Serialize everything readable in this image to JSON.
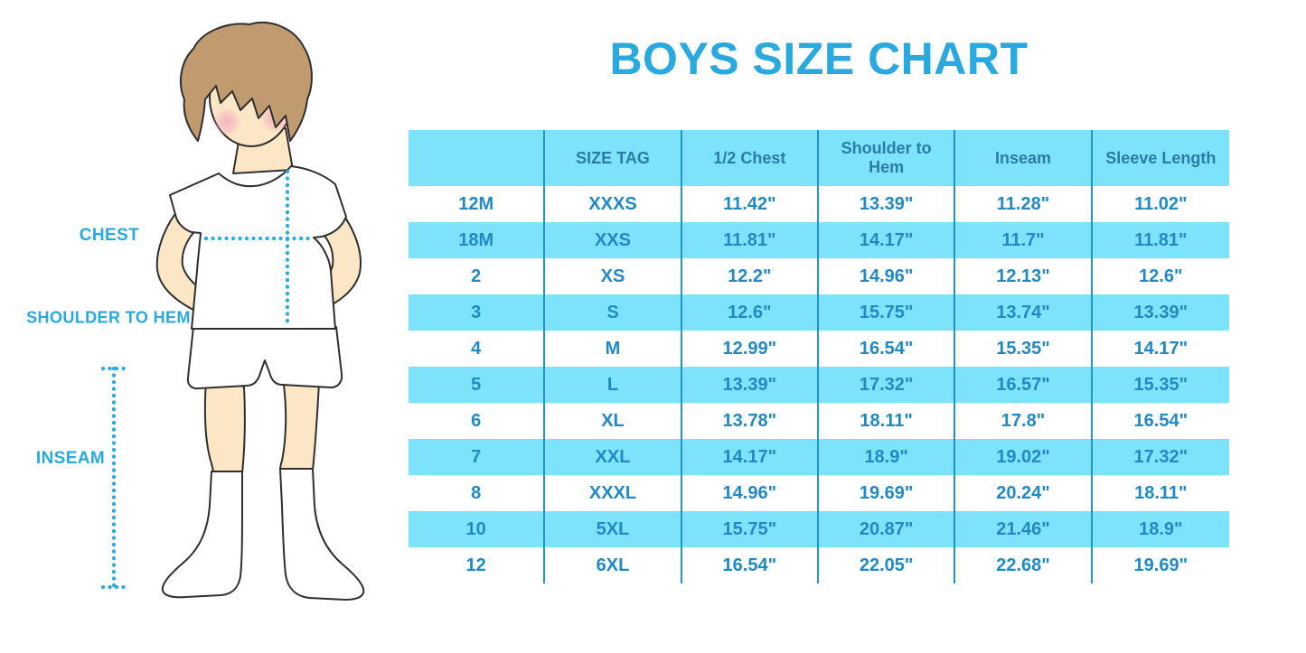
{
  "title": "BOYS SIZE CHART",
  "figure": {
    "labels": {
      "chest": "CHEST",
      "shoulder_to_hem": "SHOULDER TO HEM",
      "inseam": "INSEAM"
    }
  },
  "colors": {
    "accent_blue": "#29A9E0",
    "row_blue": "#7DE3FA",
    "divider_blue": "#2196C4",
    "header_text": "#287CA6",
    "cell_text": "#2189C4",
    "dotted_line": "#29ABE2",
    "skin": "#FBE7C6",
    "hair": "#C19B70",
    "cheek": "#F2A9BE",
    "outline": "#2F2F2F"
  },
  "chart_data": {
    "type": "table",
    "title": "BOYS SIZE CHART",
    "columns": [
      "",
      "SIZE TAG",
      "1/2 Chest",
      "Shoulder to Hem",
      "Inseam",
      "Sleeve Length"
    ],
    "rows": [
      [
        "12M",
        "XXXS",
        "11.42\"",
        "13.39\"",
        "11.28\"",
        "11.02\""
      ],
      [
        "18M",
        "XXS",
        "11.81\"",
        "14.17\"",
        "11.7\"",
        "11.81\""
      ],
      [
        "2",
        "XS",
        "12.2\"",
        "14.96\"",
        "12.13\"",
        "12.6\""
      ],
      [
        "3",
        "S",
        "12.6\"",
        "15.75\"",
        "13.74\"",
        "13.39\""
      ],
      [
        "4",
        "M",
        "12.99\"",
        "16.54\"",
        "15.35\"",
        "14.17\""
      ],
      [
        "5",
        "L",
        "13.39\"",
        "17.32\"",
        "16.57\"",
        "15.35\""
      ],
      [
        "6",
        "XL",
        "13.78\"",
        "18.11\"",
        "17.8\"",
        "16.54\""
      ],
      [
        "7",
        "XXL",
        "14.17\"",
        "18.9\"",
        "19.02\"",
        "17.32\""
      ],
      [
        "8",
        "XXXL",
        "14.96\"",
        "19.69\"",
        "20.24\"",
        "18.11\""
      ],
      [
        "10",
        "5XL",
        "15.75\"",
        "20.87\"",
        "21.46\"",
        "18.9\""
      ],
      [
        "12",
        "6XL",
        "16.54\"",
        "22.05\"",
        "22.68\"",
        "19.69\""
      ]
    ],
    "striped": true,
    "first_data_row_background": "white",
    "legend_position": "none",
    "grid": "vertical-dividers-only"
  }
}
